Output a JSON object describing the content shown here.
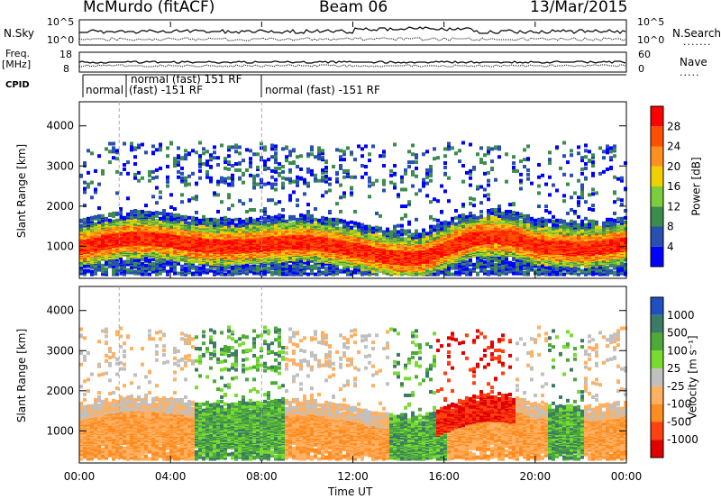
{
  "header": {
    "station": "McMurdo (fitACF)",
    "beam": "Beam 06",
    "date": "13/Mar/2015"
  },
  "params": {
    "nsky_label": "N.Sky",
    "nsky_ticks": [
      "10^5",
      "10^0"
    ],
    "nsearch_label": "N.Search",
    "nsearch_ticks": [
      "10^5",
      "10^0"
    ],
    "freq_label": "Freq.",
    "freq_unit": "[MHz]",
    "freq_ticks": [
      "18",
      "8"
    ],
    "nave_label": "Nave",
    "nave_ticks": [
      "60",
      "0"
    ],
    "cpid_label": "CPID"
  },
  "cpid": {
    "modes": [
      {
        "label": "normal",
        "start_hr": 0.0
      },
      {
        "label": "normal (fast) 151 RF",
        "start_hr": 1.75
      },
      {
        "label": "(fast) -151 RF",
        "start_hr": 1.75
      },
      {
        "label": "normal (fast) -151 RF",
        "start_hr": 8.0
      }
    ]
  },
  "chart_data": [
    {
      "type": "heatmap",
      "panel": "power",
      "ylabel": "Slant Range [km]",
      "ylim": [
        200,
        4600
      ],
      "yticks": [
        1000,
        2000,
        3000,
        4000
      ],
      "xlim": [
        0,
        24
      ],
      "colorbar": {
        "label": "Power [dB]",
        "ticks": [
          4,
          8,
          12,
          16,
          20,
          24,
          28
        ],
        "range": [
          0,
          32
        ],
        "colors": [
          "#0000ff",
          "#2850b0",
          "#3c8c4c",
          "#7ccc3c",
          "#f0d000",
          "#ff9020",
          "#ff5000",
          "#ff0000"
        ]
      },
      "scatter_bands": [
        {
          "range_km": [
            300,
            700
          ],
          "note": "low-range ground scatter"
        },
        {
          "range_km": [
            600,
            1700
          ],
          "note": "main band, peak power 24-32 dB"
        },
        {
          "range_km": [
            2500,
            3500
          ],
          "note": "sparse far-range echoes"
        }
      ]
    },
    {
      "type": "heatmap",
      "panel": "velocity",
      "ylabel": "Slant Range [km]",
      "xlabel": "Time UT",
      "ylim": [
        200,
        4600
      ],
      "yticks": [
        1000,
        2000,
        3000,
        4000
      ],
      "xlim": [
        0,
        24
      ],
      "xticks": [
        "00:00",
        "04:00",
        "08:00",
        "12:00",
        "16:00",
        "20:00",
        "00:00"
      ],
      "colorbar": {
        "label": "Velocity [m s⁻¹]",
        "ticks": [
          "1000",
          "500",
          "100",
          "25",
          "-25",
          "-100",
          "-500",
          "-1000"
        ],
        "colors": [
          "#2050c0",
          "#3c7c64",
          "#4caa38",
          "#78dc30",
          "#c0c0c0",
          "#ffb060",
          "#ff8c20",
          "#ff4010",
          "#e00000"
        ]
      }
    }
  ]
}
